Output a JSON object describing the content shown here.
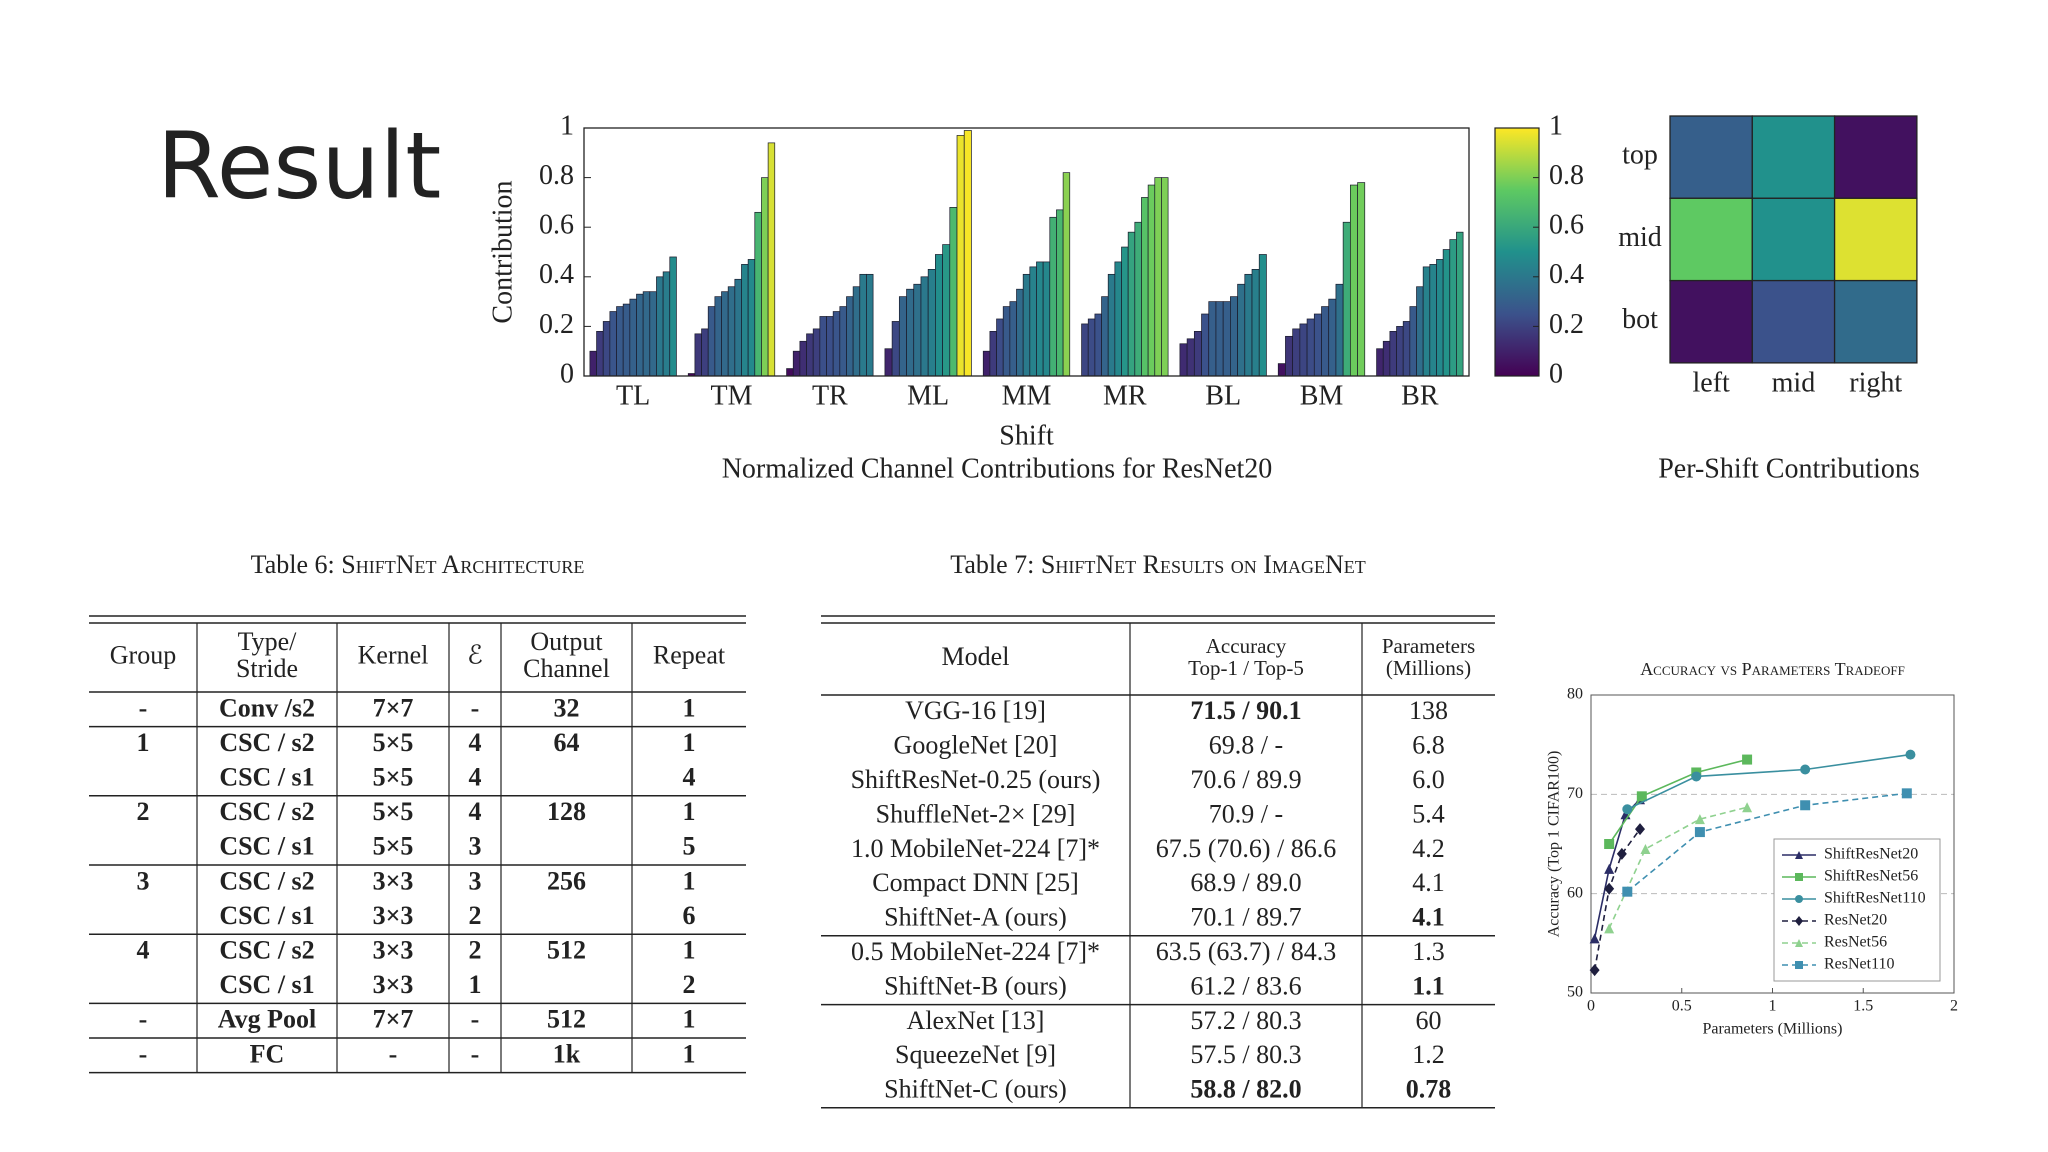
{
  "title": "Result",
  "chart_data": [
    {
      "type": "bar",
      "title": "Normalized Channel Contributions for ResNet20",
      "xlabel": "Shift",
      "ylabel": "Contribution",
      "categories": [
        "TL",
        "TM",
        "TR",
        "ML",
        "MM",
        "MR",
        "BL",
        "BM",
        "BR"
      ],
      "values": [
        [
          0.1,
          0.18,
          0.22,
          0.26,
          0.28,
          0.29,
          0.31,
          0.33,
          0.34,
          0.34,
          0.4,
          0.42,
          0.48
        ],
        [
          0.01,
          0.17,
          0.19,
          0.28,
          0.32,
          0.34,
          0.36,
          0.39,
          0.45,
          0.47,
          0.66,
          0.8,
          0.94
        ],
        [
          0.03,
          0.1,
          0.14,
          0.17,
          0.19,
          0.24,
          0.24,
          0.26,
          0.28,
          0.32,
          0.36,
          0.41,
          0.41
        ],
        [
          0.11,
          0.22,
          0.32,
          0.35,
          0.37,
          0.4,
          0.43,
          0.49,
          0.53,
          0.68,
          0.97,
          0.99
        ],
        [
          0.1,
          0.18,
          0.23,
          0.28,
          0.3,
          0.35,
          0.41,
          0.44,
          0.46,
          0.46,
          0.64,
          0.67,
          0.82
        ],
        [
          0.21,
          0.23,
          0.25,
          0.32,
          0.41,
          0.46,
          0.52,
          0.58,
          0.62,
          0.72,
          0.77,
          0.8,
          0.8
        ],
        [
          0.13,
          0.15,
          0.18,
          0.25,
          0.3,
          0.3,
          0.3,
          0.32,
          0.37,
          0.41,
          0.43,
          0.49
        ],
        [
          0.05,
          0.16,
          0.19,
          0.21,
          0.23,
          0.25,
          0.28,
          0.31,
          0.37,
          0.62,
          0.77,
          0.78
        ],
        [
          0.11,
          0.14,
          0.18,
          0.2,
          0.22,
          0.28,
          0.36,
          0.44,
          0.45,
          0.47,
          0.51,
          0.55,
          0.58
        ]
      ],
      "colormap": "viridis",
      "ylim": [
        0,
        1
      ],
      "yticks": [
        0,
        0.2,
        0.4,
        0.6,
        0.8,
        1
      ],
      "clim": [
        0,
        1
      ],
      "colorbar_ticks": [
        0,
        0.2,
        0.4,
        0.6,
        0.8,
        1
      ]
    },
    {
      "type": "heatmap",
      "title": "Per-Shift Contributions",
      "colormap": "viridis",
      "clim": [
        0,
        1
      ],
      "xcategories": [
        "left",
        "mid",
        "right"
      ],
      "ycategories": [
        "top",
        "mid",
        "bot"
      ],
      "values": [
        [
          0.3,
          0.5,
          0.05
        ],
        [
          0.75,
          0.5,
          0.95
        ],
        [
          0.05,
          0.25,
          0.35
        ]
      ]
    },
    {
      "type": "line",
      "title": "Accuracy vs Parameters Tradeoff",
      "xlabel": "Parameters (Millions)",
      "ylabel": "Accuracy (Top 1 CIFAR100)",
      "xlim": [
        0,
        2
      ],
      "xticks": [
        0,
        0.5,
        1,
        1.5,
        2
      ],
      "ylim": [
        50,
        80
      ],
      "yticks": [
        50,
        60,
        70,
        80
      ],
      "grid": true,
      "legend": "lower right",
      "series": [
        {
          "name": "ShiftResNet20",
          "color": "#2b2d66",
          "marker": "triangle",
          "dashed": false,
          "x": [
            0.02,
            0.1,
            0.19,
            0.27
          ],
          "values": [
            55.5,
            62.5,
            68,
            69.5
          ]
        },
        {
          "name": "ShiftResNet56",
          "color": "#5cb85c",
          "marker": "square",
          "dashed": false,
          "x": [
            0.1,
            0.28,
            0.58,
            0.86
          ],
          "values": [
            65,
            69.8,
            72.2,
            73.5
          ]
        },
        {
          "name": "ShiftResNet110",
          "color": "#3a8f9f",
          "marker": "circle",
          "dashed": false,
          "x": [
            0.2,
            0.58,
            1.18,
            1.76
          ],
          "values": [
            68.5,
            71.8,
            72.5,
            74
          ]
        },
        {
          "name": "ResNet20",
          "color": "#1f1f3f",
          "marker": "diamond",
          "dashed": true,
          "x": [
            0.02,
            0.1,
            0.17,
            0.27
          ],
          "values": [
            52.3,
            60.5,
            64,
            66.5
          ]
        },
        {
          "name": "ResNet56",
          "color": "#8fd18f",
          "marker": "triangle",
          "dashed": true,
          "x": [
            0.1,
            0.3,
            0.6,
            0.86
          ],
          "values": [
            56.5,
            64.5,
            67.5,
            68.7
          ]
        },
        {
          "name": "ResNet110",
          "color": "#3f8fb0",
          "marker": "square",
          "dashed": true,
          "x": [
            0.2,
            0.6,
            1.18,
            1.74
          ],
          "values": [
            60.2,
            66.2,
            68.9,
            70.1
          ]
        }
      ]
    }
  ],
  "table6": {
    "caption": {
      "label": "Table 6:",
      "text": "ShiftNet Architecture"
    },
    "header": [
      [
        "Group"
      ],
      [
        "Type/",
        "Stride"
      ],
      [
        "Kernel"
      ],
      [
        "ℰ"
      ],
      [
        "Output",
        "Channel"
      ],
      [
        "Repeat"
      ]
    ],
    "row_groups": [
      [
        [
          "-",
          "Conv /s2",
          "7×7",
          "-",
          "32",
          "1"
        ]
      ],
      [
        [
          "1",
          "CSC / s2",
          "5×5",
          "4",
          "64",
          "1"
        ],
        [
          null,
          "CSC / s1",
          "5×5",
          "4",
          null,
          "4"
        ]
      ],
      [
        [
          "2",
          "CSC / s2",
          "5×5",
          "4",
          "128",
          "1"
        ],
        [
          null,
          "CSC / s1",
          "5×5",
          "3",
          null,
          "5"
        ]
      ],
      [
        [
          "3",
          "CSC / s2",
          "3×3",
          "3",
          "256",
          "1"
        ],
        [
          null,
          "CSC / s1",
          "3×3",
          "2",
          null,
          "6"
        ]
      ],
      [
        [
          "4",
          "CSC / s2",
          "3×3",
          "2",
          "512",
          "1"
        ],
        [
          null,
          "CSC / s1",
          "3×3",
          "1",
          null,
          "2"
        ]
      ],
      [
        [
          "-",
          "Avg Pool",
          "7×7",
          "-",
          "512",
          "1"
        ]
      ],
      [
        [
          "-",
          "FC",
          "-",
          "-",
          "1k",
          "1"
        ]
      ]
    ]
  },
  "table7": {
    "caption": {
      "label": "Table 7:",
      "text": "ShiftNet Results on ImageNet"
    },
    "header": [
      [
        "Model"
      ],
      [
        "Accuracy",
        "Top-1 / Top-5"
      ],
      [
        "Parameters",
        "(Millions)"
      ]
    ],
    "row_groups": [
      [
        [
          {
            "text": "VGG-16 [19]"
          },
          {
            "text": "71.5 / 90.1",
            "bold": true
          },
          {
            "text": "138"
          }
        ],
        [
          {
            "text": "GoogleNet [20]"
          },
          {
            "text": "69.8 / -"
          },
          {
            "text": "6.8"
          }
        ],
        [
          {
            "text": "ShiftResNet-0.25 (ours)"
          },
          {
            "text": "70.6 / 89.9"
          },
          {
            "text": "6.0"
          }
        ],
        [
          {
            "text": "ShuffleNet-2× [29]"
          },
          {
            "text": "70.9 / -"
          },
          {
            "text": "5.4"
          }
        ],
        [
          {
            "text": "1.0 MobileNet-224 [7]*"
          },
          {
            "text": "67.5 (70.6) / 86.6"
          },
          {
            "text": "4.2"
          }
        ],
        [
          {
            "text": "Compact DNN [25]"
          },
          {
            "text": "68.9 / 89.0"
          },
          {
            "text": "4.1"
          }
        ],
        [
          {
            "text": "ShiftNet-A (ours)"
          },
          {
            "text": "70.1 / 89.7"
          },
          {
            "text": "4.1",
            "bold": true
          }
        ]
      ],
      [
        [
          {
            "text": "0.5 MobileNet-224 [7]*"
          },
          {
            "text": "63.5 (63.7) / 84.3"
          },
          {
            "text": "1.3"
          }
        ],
        [
          {
            "text": "ShiftNet-B (ours)"
          },
          {
            "text": "61.2 / 83.6"
          },
          {
            "text": "1.1",
            "bold": true
          }
        ]
      ],
      [
        [
          {
            "text": "AlexNet [13]"
          },
          {
            "text": "57.2 / 80.3"
          },
          {
            "text": "60"
          }
        ],
        [
          {
            "text": "SqueezeNet [9]"
          },
          {
            "text": "57.5 / 80.3"
          },
          {
            "text": "1.2"
          }
        ],
        [
          {
            "text": "ShiftNet-C (ours)"
          },
          {
            "text": "58.8 / 82.0",
            "bold": true
          },
          {
            "text": "0.78",
            "bold": true
          }
        ]
      ]
    ]
  }
}
